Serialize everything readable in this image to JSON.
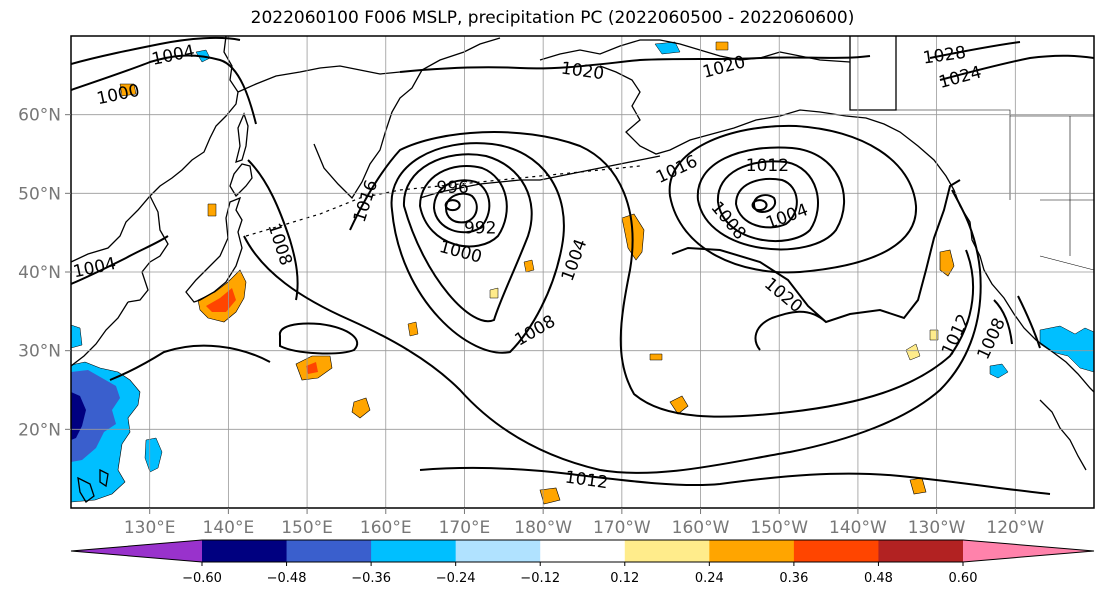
{
  "title": "2022060100 F006 MSLP, precipitation PC (2022060500 - 2022060600)",
  "map": {
    "projection": "cylindrical",
    "lon_range": [
      120,
      250
    ],
    "lat_range": [
      10,
      70
    ],
    "grid": true,
    "x_ticks": [
      {
        "lon": 130,
        "label": "130°E"
      },
      {
        "lon": 140,
        "label": "140°E"
      },
      {
        "lon": 150,
        "label": "150°E"
      },
      {
        "lon": 160,
        "label": "160°E"
      },
      {
        "lon": 170,
        "label": "170°E"
      },
      {
        "lon": 180,
        "label": "180°W"
      },
      {
        "lon": 190,
        "label": "170°W"
      },
      {
        "lon": 200,
        "label": "160°W"
      },
      {
        "lon": 210,
        "label": "150°W"
      },
      {
        "lon": 220,
        "label": "140°W"
      },
      {
        "lon": 230,
        "label": "130°W"
      },
      {
        "lon": 240,
        "label": "120°W"
      }
    ],
    "y_ticks": [
      {
        "lat": 60,
        "label": "60°N"
      },
      {
        "lat": 50,
        "label": "50°N"
      },
      {
        "lat": 40,
        "label": "40°N"
      },
      {
        "lat": 30,
        "label": "30°N"
      },
      {
        "lat": 20,
        "label": "20°N"
      }
    ],
    "isobar_labels": [
      {
        "text": "1004",
        "lon": 133,
        "lat": 67.5,
        "angle": -12
      },
      {
        "text": "1000",
        "lon": 126,
        "lat": 62.5,
        "angle": -12
      },
      {
        "text": "1020",
        "lon": 185,
        "lat": 65.5,
        "angle": 8
      },
      {
        "text": "1020",
        "lon": 203,
        "lat": 66,
        "angle": -15
      },
      {
        "text": "1028",
        "lon": 231,
        "lat": 67.5,
        "angle": -8
      },
      {
        "text": "1024",
        "lon": 233,
        "lat": 64.7,
        "angle": -15
      },
      {
        "text": "1016",
        "lon": 157.5,
        "lat": 49,
        "angle": -72
      },
      {
        "text": "1008",
        "lon": 146.5,
        "lat": 43.5,
        "angle": 72
      },
      {
        "text": "996",
        "lon": 168.5,
        "lat": 50.7,
        "angle": 0
      },
      {
        "text": "992",
        "lon": 172,
        "lat": 45.5,
        "angle": 0
      },
      {
        "text": "1000",
        "lon": 169.5,
        "lat": 42.5,
        "angle": 15
      },
      {
        "text": "1004",
        "lon": 184,
        "lat": 41.5,
        "angle": -70
      },
      {
        "text": "1008",
        "lon": 179,
        "lat": 32.5,
        "angle": -30
      },
      {
        "text": "1016",
        "lon": 197,
        "lat": 53,
        "angle": -25
      },
      {
        "text": "1012",
        "lon": 208.5,
        "lat": 53.5,
        "angle": 0
      },
      {
        "text": "1008",
        "lon": 203.5,
        "lat": 46.5,
        "angle": 50
      },
      {
        "text": "1004",
        "lon": 211,
        "lat": 47,
        "angle": -20
      },
      {
        "text": "1020",
        "lon": 210.5,
        "lat": 37,
        "angle": 40
      },
      {
        "text": "1004",
        "lon": 123,
        "lat": 40.5,
        "angle": -12
      },
      {
        "text": "1012",
        "lon": 185.5,
        "lat": 13.5,
        "angle": 8
      },
      {
        "text": "1012",
        "lon": 232.5,
        "lat": 32,
        "angle": -65
      },
      {
        "text": "1008",
        "lon": 237,
        "lat": 31.5,
        "angle": -65
      }
    ],
    "lows": [
      {
        "lon": 168.5,
        "lat": 48.5
      },
      {
        "lon": 207.5,
        "lat": 48.5
      }
    ]
  },
  "colorbar": {
    "extend": "both",
    "colors": [
      "#9932cc",
      "#000080",
      "#3a5fcd",
      "#00bfff",
      "#b0e2ff",
      "#ffffff",
      "#ffec8b",
      "#ffa500",
      "#ff4500",
      "#b22222",
      "#ff82ab"
    ],
    "boundaries": [
      "−0.60",
      "−0.48",
      "−0.36",
      "−0.24",
      "−0.12",
      "0.12",
      "0.24",
      "0.36",
      "0.48",
      "0.60"
    ]
  }
}
